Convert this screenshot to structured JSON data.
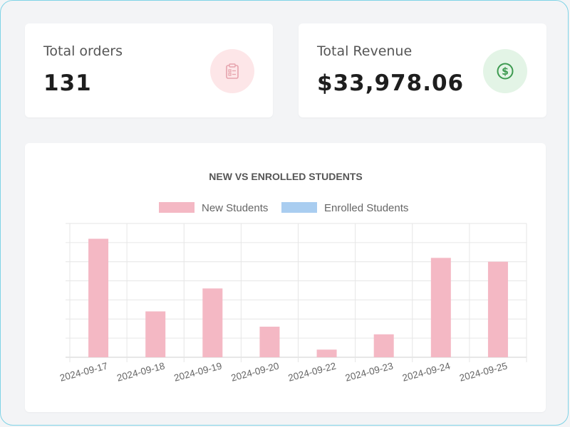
{
  "cards": {
    "orders": {
      "label": "Total orders",
      "value": "131",
      "icon": "clipboard-icon",
      "icon_bg": "#fde6e8",
      "icon_color": "#e6a3ad"
    },
    "revenue": {
      "label": "Total Revenue",
      "value": "$33,978.06",
      "icon": "dollar-icon",
      "icon_bg": "#e3f4e6",
      "icon_color": "#3d9a50"
    }
  },
  "chart_data": {
    "type": "bar",
    "title": "NEW VS ENROLLED STUDENTS",
    "categories": [
      "2024-09-17",
      "2024-09-18",
      "2024-09-19",
      "2024-09-20",
      "2024-09-22",
      "2024-09-23",
      "2024-09-24",
      "2024-09-25"
    ],
    "series": [
      {
        "name": "New Students",
        "color": "#f4b8c4",
        "values": [
          31,
          12,
          18,
          8,
          2,
          6,
          26,
          25
        ]
      },
      {
        "name": "Enrolled Students",
        "color": "#a9cdf0",
        "values": [
          0,
          0,
          0,
          0,
          0,
          0,
          0,
          0
        ]
      }
    ],
    "ylim": [
      0,
      35
    ],
    "grid": true,
    "legend": "top",
    "xlabel": "",
    "ylabel": ""
  }
}
